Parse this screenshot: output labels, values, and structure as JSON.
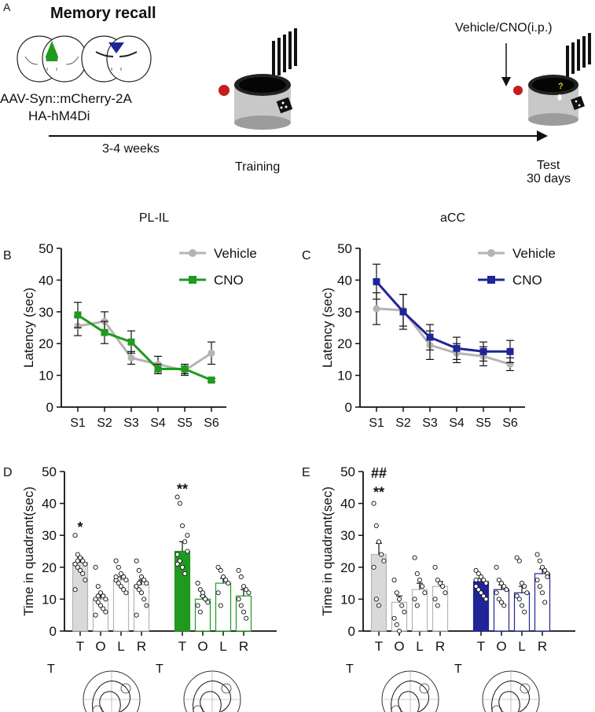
{
  "panel_a": {
    "letter": "A",
    "title": "Memory recall",
    "virus_line1": "AAV-Syn::mCherry-2A",
    "virus_line2": "HA-hM4Di",
    "duration": "3-4 weeks",
    "training": "Training",
    "injection": "Vehicle/CNO(i.p.)",
    "test_line1": "Test",
    "test_line2": "30 days",
    "question_mark": "?"
  },
  "colors": {
    "vehicle_gray": "#b4b4b4",
    "cno_green": "#1f9a1f",
    "cno_blue": "#1f2596",
    "axis": "#111111"
  },
  "chart_data": [
    {
      "id": "B",
      "type": "line",
      "letter": "B",
      "title": "PL-IL",
      "ylabel": "Latency (sec)",
      "xlabel": "",
      "ylim": [
        0,
        50
      ],
      "yticks": [
        0,
        10,
        20,
        30,
        40,
        50
      ],
      "categories": [
        "S1",
        "S2",
        "S3",
        "S4",
        "S5",
        "S6"
      ],
      "series": [
        {
          "name": "Vehicle",
          "color": "#b4b4b4",
          "marker": "circle",
          "values": [
            25.5,
            27,
            15.5,
            13.5,
            11.5,
            17
          ],
          "errors": [
            3,
            3,
            2,
            2.5,
            1.5,
            3.5
          ]
        },
        {
          "name": "CNO",
          "color": "#1f9a1f",
          "marker": "square",
          "values": [
            29,
            23.5,
            20.5,
            12,
            12,
            8.5
          ],
          "errors": [
            4,
            3.5,
            3.5,
            1.5,
            1.5,
            0.5
          ]
        }
      ],
      "legend": "top-right"
    },
    {
      "id": "C",
      "type": "line",
      "letter": "C",
      "title": "aCC",
      "ylabel": "Latency (sec)",
      "xlabel": "",
      "ylim": [
        0,
        50
      ],
      "yticks": [
        0,
        10,
        20,
        30,
        40,
        50
      ],
      "categories": [
        "S1",
        "S2",
        "S3",
        "S4",
        "S5",
        "S6"
      ],
      "series": [
        {
          "name": "Vehicle",
          "color": "#b4b4b4",
          "marker": "circle",
          "values": [
            31,
            30.5,
            19.5,
            17,
            16,
            13.5
          ],
          "errors": [
            5,
            5,
            4.5,
            3,
            3,
            2
          ]
        },
        {
          "name": "CNO",
          "color": "#1f2596",
          "marker": "square",
          "values": [
            39.5,
            30,
            22,
            18.5,
            17.5,
            17.5
          ],
          "errors": [
            5.5,
            5.5,
            4,
            3.5,
            3,
            3.5
          ]
        }
      ],
      "legend": "top-right"
    },
    {
      "id": "D",
      "type": "bar",
      "letter": "D",
      "title": "",
      "ylabel": "Time in quadrant(sec)",
      "xlabel": "",
      "ylim": [
        0,
        50
      ],
      "yticks": [
        0,
        10,
        20,
        30,
        40,
        50
      ],
      "categories": [
        "T",
        "O",
        "L",
        "R",
        "T",
        "O",
        "L",
        "R"
      ],
      "groups": [
        {
          "name": "Vehicle",
          "fill": "#d9d9d9",
          "edge": "#b4b4b4",
          "open_fill": "#ffffff",
          "values": [
            21.5,
            10,
            16,
            14.5
          ],
          "errors": [
            1.5,
            1.2,
            1,
            1.5
          ],
          "points": [
            [
              30,
              24,
              23,
              22,
              21,
              21,
              20,
              19,
              18,
              16,
              13,
              22
            ],
            [
              20,
              14,
              12,
              11,
              10,
              10,
              9,
              8,
              7,
              6,
              5,
              11
            ],
            [
              22,
              20,
              18,
              17,
              16,
              16,
              15,
              14,
              13,
              12,
              17
            ],
            [
              22,
              19,
              17,
              16,
              15,
              14,
              13,
              12,
              10,
              8,
              5,
              15
            ]
          ]
        },
        {
          "name": "CNO",
          "fill": "#1f9a1f",
          "edge": "#1f9a1f",
          "open_fill": "#ffffff",
          "values": [
            25,
            10,
            15,
            11
          ],
          "errors": [
            3,
            1,
            1.5,
            2
          ],
          "points": [
            [
              42,
              40,
              33,
              28,
              25,
              24,
              22,
              20,
              18,
              30,
              21
            ],
            [
              15,
              13,
              11,
              10,
              9,
              8,
              6,
              12,
              10
            ],
            [
              20,
              19,
              17,
              16,
              15,
              12,
              8
            ],
            [
              19,
              17,
              14,
              13,
              12,
              10,
              8,
              6,
              4
            ]
          ]
        }
      ],
      "annotations": [
        {
          "text": "*",
          "category_index": 0,
          "y": 33
        },
        {
          "text": "**",
          "category_index": 4,
          "y": 45
        }
      ],
      "trace_label": "T"
    },
    {
      "id": "E",
      "type": "bar",
      "letter": "E",
      "title": "",
      "ylabel": "Time in quadrant(sec)",
      "xlabel": "",
      "ylim": [
        0,
        50
      ],
      "yticks": [
        0,
        10,
        20,
        30,
        40,
        50
      ],
      "categories": [
        "T",
        "O",
        "L",
        "R",
        "T",
        "O",
        "L",
        "R"
      ],
      "groups": [
        {
          "name": "Vehicle",
          "fill": "#d9d9d9",
          "edge": "#b4b4b4",
          "open_fill": "#ffffff",
          "values": [
            24,
            9,
            13,
            14
          ],
          "errors": [
            3.5,
            2,
            2,
            1.5
          ],
          "points": [
            [
              40,
              33,
              28,
              24,
              22,
              20,
              10,
              8
            ],
            [
              16,
              12,
              10,
              8,
              6,
              4,
              2,
              0
            ],
            [
              23,
              18,
              16,
              14,
              12,
              10,
              8
            ],
            [
              20,
              16,
              15,
              14,
              12,
              10,
              8
            ]
          ]
        },
        {
          "name": "CNO",
          "fill": "#1f2596",
          "edge": "#1f2596",
          "open_fill": "#ffffff",
          "values": [
            15.5,
            13,
            12,
            18
          ],
          "errors": [
            1,
            1.5,
            2,
            1.5
          ],
          "points": [
            [
              19,
              18,
              17,
              16,
              15,
              14,
              13,
              12,
              11,
              10,
              16
            ],
            [
              20,
              16,
              15,
              14,
              13,
              12,
              10,
              9,
              8,
              13
            ],
            [
              23,
              22,
              15,
              14,
              12,
              11,
              10,
              8,
              6
            ],
            [
              24,
              22,
              20,
              19,
              18,
              16,
              14,
              12,
              9,
              17
            ]
          ]
        }
      ],
      "annotations": [
        {
          "text": "##",
          "category_index": 0,
          "y": 50
        },
        {
          "text": "**",
          "category_index": 0,
          "y": 44
        }
      ],
      "trace_label": "T"
    }
  ]
}
